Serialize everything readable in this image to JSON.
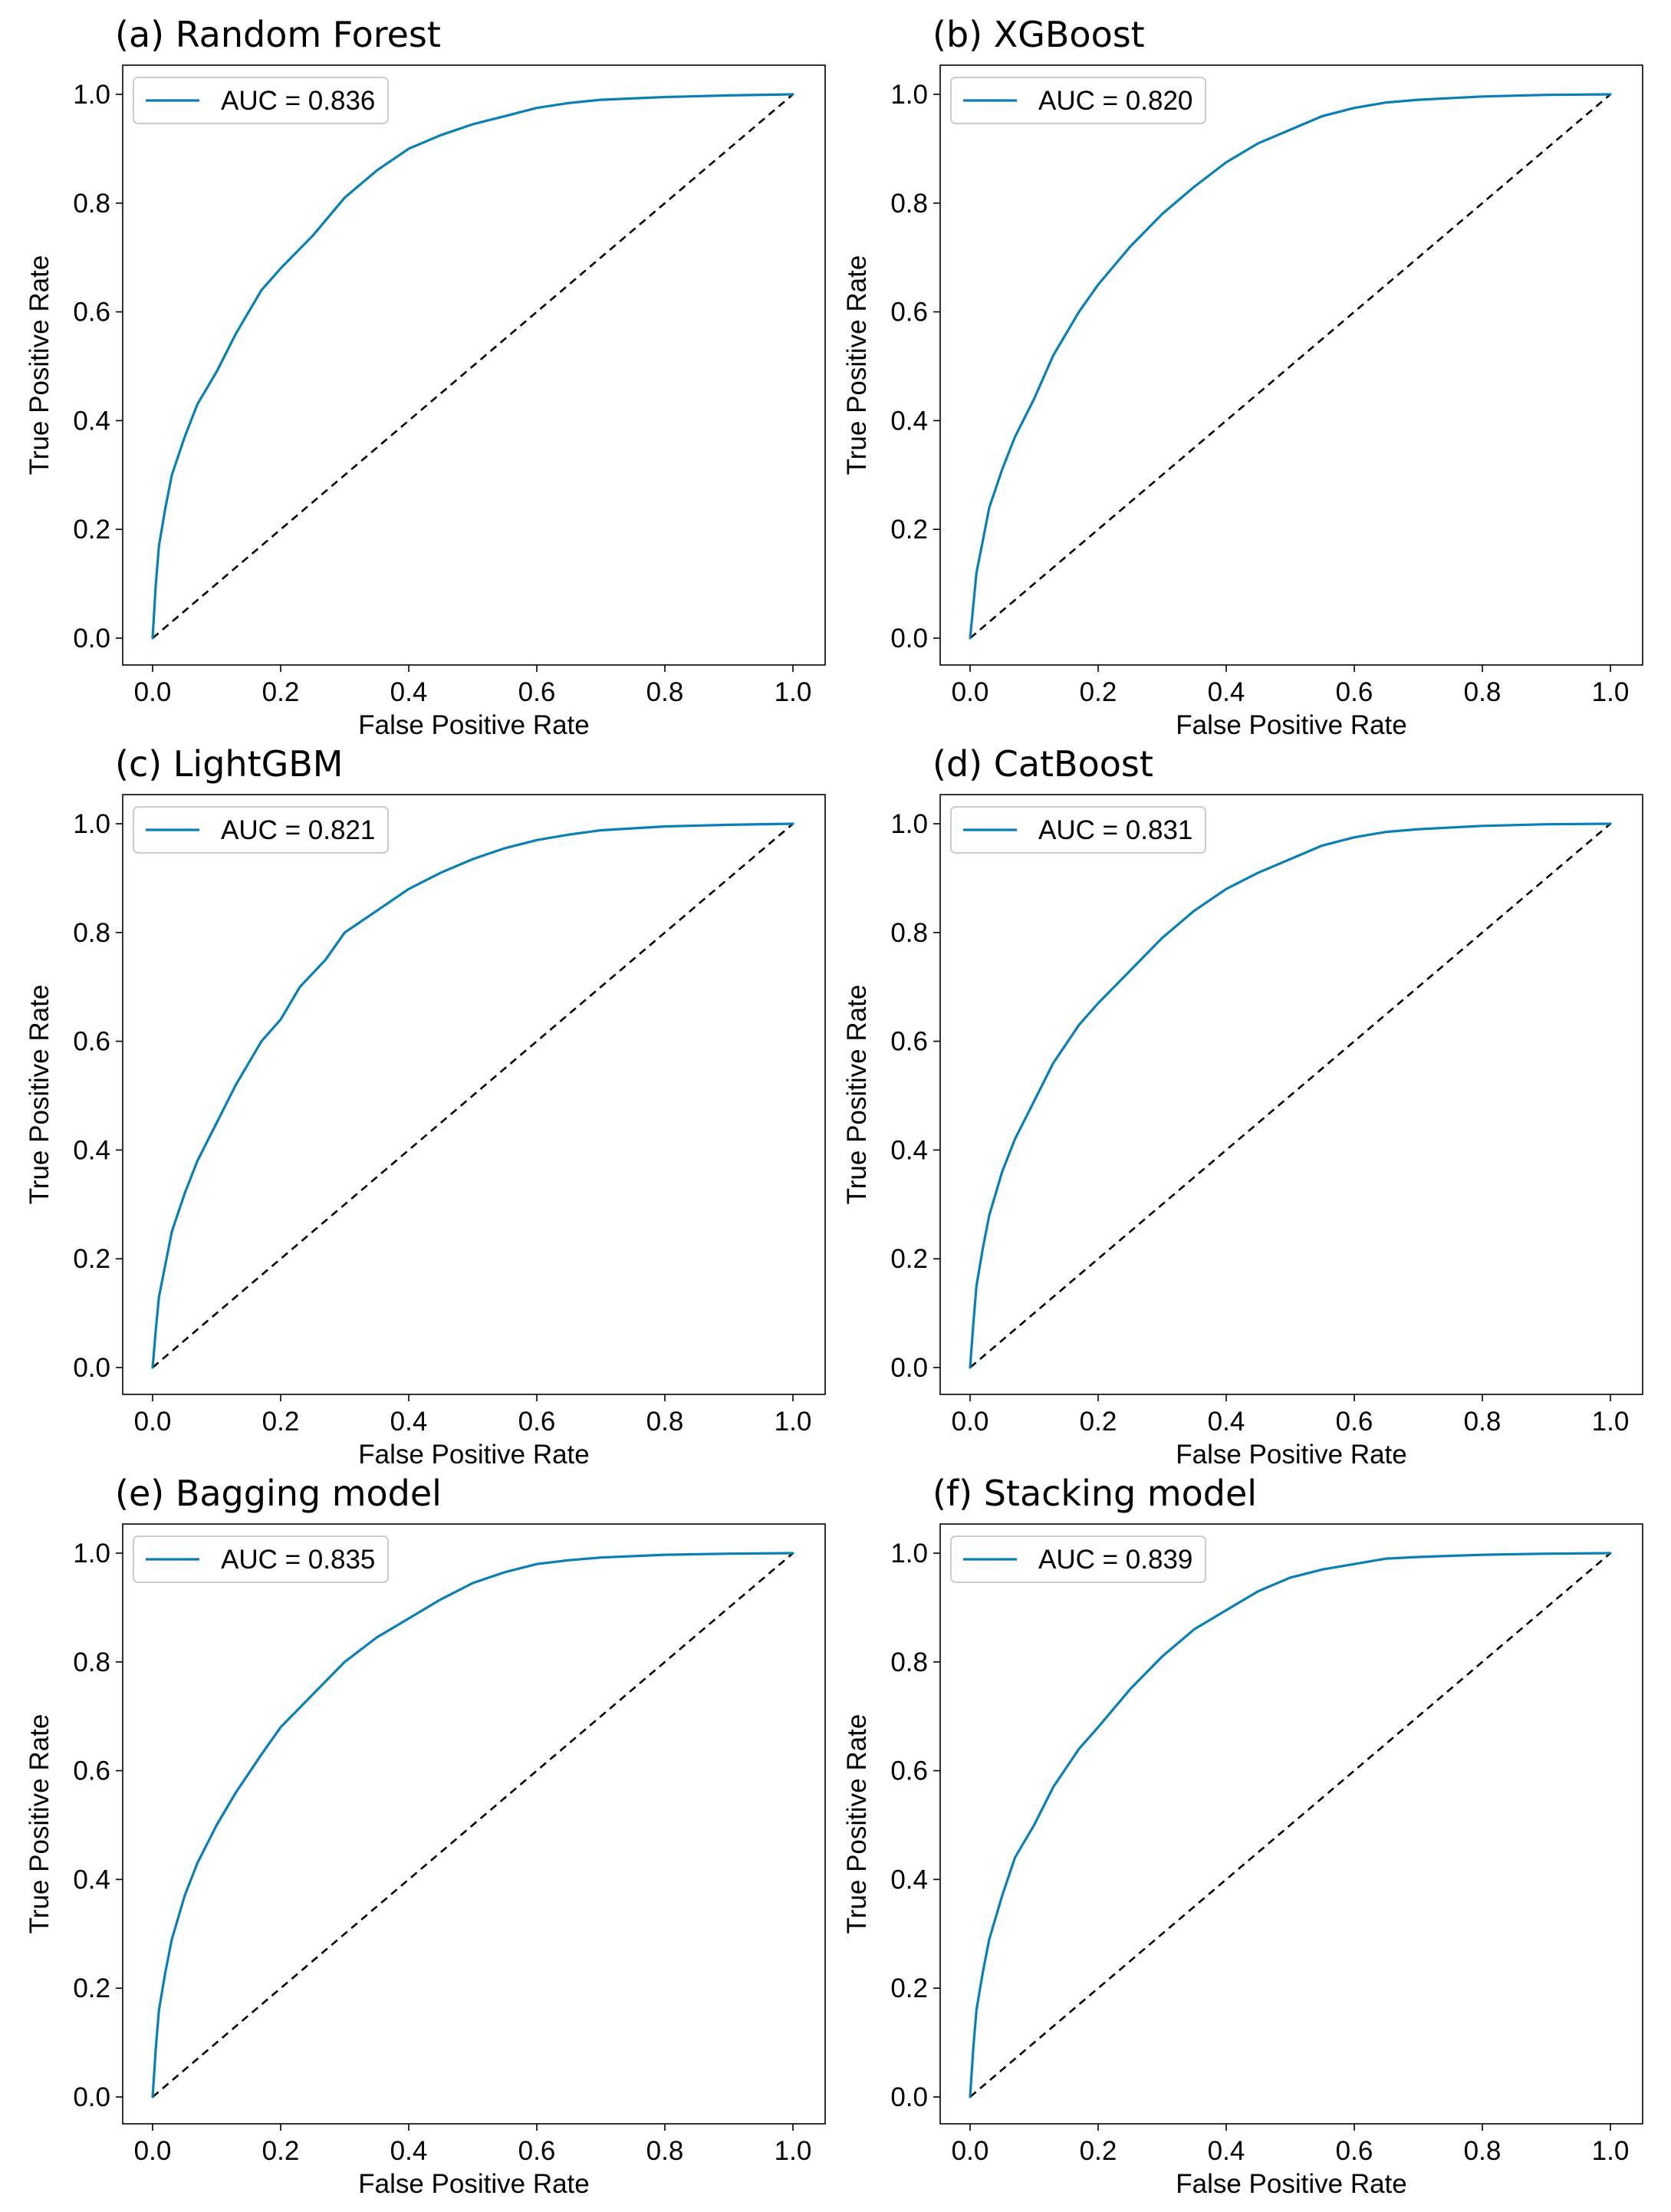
{
  "figure": {
    "background": "#ffffff",
    "curve_color": "#0a7fb3",
    "diagonal_color": "#000000"
  },
  "chart_data": [
    {
      "type": "line",
      "title": "(a) Random Forest",
      "xlabel": "False Positive Rate",
      "ylabel": "True Positive Rate",
      "xlim": [
        0,
        1
      ],
      "ylim": [
        0,
        1
      ],
      "xticks": [
        "0.0",
        "0.2",
        "0.4",
        "0.6",
        "0.8",
        "1.0"
      ],
      "yticks": [
        "0.0",
        "0.2",
        "0.4",
        "0.6",
        "0.8",
        "1.0"
      ],
      "legend": "AUC = 0.836",
      "legend_position": "top-left",
      "series": [
        {
          "name": "ROC",
          "x": [
            0,
            0.005,
            0.01,
            0.02,
            0.03,
            0.05,
            0.07,
            0.1,
            0.13,
            0.17,
            0.2,
            0.25,
            0.3,
            0.35,
            0.4,
            0.45,
            0.5,
            0.55,
            0.6,
            0.65,
            0.7,
            0.8,
            0.9,
            1.0
          ],
          "y": [
            0,
            0.1,
            0.17,
            0.24,
            0.3,
            0.37,
            0.43,
            0.49,
            0.56,
            0.64,
            0.68,
            0.74,
            0.81,
            0.86,
            0.9,
            0.925,
            0.945,
            0.96,
            0.975,
            0.984,
            0.99,
            0.995,
            0.998,
            1.0
          ]
        },
        {
          "name": "chance",
          "x": [
            0,
            1
          ],
          "y": [
            0,
            1
          ]
        }
      ]
    },
    {
      "type": "line",
      "title": "(b) XGBoost",
      "xlabel": "False Positive Rate",
      "ylabel": "True Positive Rate",
      "xlim": [
        0,
        1
      ],
      "ylim": [
        0,
        1
      ],
      "xticks": [
        "0.0",
        "0.2",
        "0.4",
        "0.6",
        "0.8",
        "1.0"
      ],
      "yticks": [
        "0.0",
        "0.2",
        "0.4",
        "0.6",
        "0.8",
        "1.0"
      ],
      "legend": "AUC = 0.820",
      "legend_position": "top-left",
      "series": [
        {
          "name": "ROC",
          "x": [
            0,
            0.005,
            0.01,
            0.02,
            0.03,
            0.05,
            0.07,
            0.1,
            0.13,
            0.17,
            0.2,
            0.25,
            0.3,
            0.35,
            0.4,
            0.45,
            0.5,
            0.55,
            0.6,
            0.65,
            0.7,
            0.8,
            0.9,
            1.0
          ],
          "y": [
            0,
            0.06,
            0.12,
            0.18,
            0.24,
            0.31,
            0.37,
            0.44,
            0.52,
            0.6,
            0.65,
            0.72,
            0.78,
            0.83,
            0.875,
            0.91,
            0.935,
            0.96,
            0.975,
            0.985,
            0.99,
            0.996,
            0.999,
            1.0
          ]
        },
        {
          "name": "chance",
          "x": [
            0,
            1
          ],
          "y": [
            0,
            1
          ]
        }
      ]
    },
    {
      "type": "line",
      "title": "(c) LightGBM",
      "xlabel": "False Positive Rate",
      "ylabel": "True Positive Rate",
      "xlim": [
        0,
        1
      ],
      "ylim": [
        0,
        1
      ],
      "xticks": [
        "0.0",
        "0.2",
        "0.4",
        "0.6",
        "0.8",
        "1.0"
      ],
      "yticks": [
        "0.0",
        "0.2",
        "0.4",
        "0.6",
        "0.8",
        "1.0"
      ],
      "legend": "AUC = 0.821",
      "legend_position": "top-left",
      "series": [
        {
          "name": "ROC",
          "x": [
            0,
            0.005,
            0.01,
            0.02,
            0.03,
            0.05,
            0.07,
            0.1,
            0.13,
            0.17,
            0.2,
            0.23,
            0.27,
            0.3,
            0.35,
            0.4,
            0.45,
            0.5,
            0.55,
            0.6,
            0.65,
            0.7,
            0.8,
            0.9,
            1.0
          ],
          "y": [
            0,
            0.07,
            0.13,
            0.19,
            0.25,
            0.32,
            0.38,
            0.45,
            0.52,
            0.6,
            0.64,
            0.7,
            0.75,
            0.8,
            0.84,
            0.88,
            0.91,
            0.935,
            0.955,
            0.97,
            0.98,
            0.988,
            0.995,
            0.998,
            1.0
          ]
        },
        {
          "name": "chance",
          "x": [
            0,
            1
          ],
          "y": [
            0,
            1
          ]
        }
      ]
    },
    {
      "type": "line",
      "title": "(d) CatBoost",
      "xlabel": "False Positive Rate",
      "ylabel": "True Positive Rate",
      "xlim": [
        0,
        1
      ],
      "ylim": [
        0,
        1
      ],
      "xticks": [
        "0.0",
        "0.2",
        "0.4",
        "0.6",
        "0.8",
        "1.0"
      ],
      "yticks": [
        "0.0",
        "0.2",
        "0.4",
        "0.6",
        "0.8",
        "1.0"
      ],
      "legend": "AUC = 0.831",
      "legend_position": "top-left",
      "series": [
        {
          "name": "ROC",
          "x": [
            0,
            0.005,
            0.01,
            0.02,
            0.03,
            0.05,
            0.07,
            0.1,
            0.13,
            0.17,
            0.2,
            0.25,
            0.3,
            0.35,
            0.4,
            0.45,
            0.5,
            0.55,
            0.6,
            0.65,
            0.7,
            0.8,
            0.9,
            1.0
          ],
          "y": [
            0,
            0.08,
            0.15,
            0.22,
            0.28,
            0.36,
            0.42,
            0.49,
            0.56,
            0.63,
            0.67,
            0.73,
            0.79,
            0.84,
            0.88,
            0.91,
            0.935,
            0.96,
            0.975,
            0.985,
            0.99,
            0.996,
            0.999,
            1.0
          ]
        },
        {
          "name": "chance",
          "x": [
            0,
            1
          ],
          "y": [
            0,
            1
          ]
        }
      ]
    },
    {
      "type": "line",
      "title": "(e) Bagging model",
      "xlabel": "False Positive Rate",
      "ylabel": "True Positive Rate",
      "xlim": [
        0,
        1
      ],
      "ylim": [
        0,
        1
      ],
      "xticks": [
        "0.0",
        "0.2",
        "0.4",
        "0.6",
        "0.8",
        "1.0"
      ],
      "yticks": [
        "0.0",
        "0.2",
        "0.4",
        "0.6",
        "0.8",
        "1.0"
      ],
      "legend": "AUC = 0.835",
      "legend_position": "top-left",
      "series": [
        {
          "name": "ROC",
          "x": [
            0,
            0.005,
            0.01,
            0.02,
            0.03,
            0.05,
            0.07,
            0.1,
            0.13,
            0.17,
            0.2,
            0.25,
            0.3,
            0.35,
            0.4,
            0.45,
            0.5,
            0.55,
            0.6,
            0.65,
            0.7,
            0.8,
            0.9,
            1.0
          ],
          "y": [
            0,
            0.09,
            0.16,
            0.23,
            0.29,
            0.37,
            0.43,
            0.5,
            0.56,
            0.63,
            0.68,
            0.74,
            0.8,
            0.845,
            0.88,
            0.915,
            0.945,
            0.965,
            0.98,
            0.987,
            0.992,
            0.997,
            0.999,
            1.0
          ]
        },
        {
          "name": "chance",
          "x": [
            0,
            1
          ],
          "y": [
            0,
            1
          ]
        }
      ]
    },
    {
      "type": "line",
      "title": "(f) Stacking model",
      "xlabel": "False Positive Rate",
      "ylabel": "True Positive Rate",
      "xlim": [
        0,
        1
      ],
      "ylim": [
        0,
        1
      ],
      "xticks": [
        "0.0",
        "0.2",
        "0.4",
        "0.6",
        "0.8",
        "1.0"
      ],
      "yticks": [
        "0.0",
        "0.2",
        "0.4",
        "0.6",
        "0.8",
        "1.0"
      ],
      "legend": "AUC = 0.839",
      "legend_position": "top-left",
      "series": [
        {
          "name": "ROC",
          "x": [
            0,
            0.005,
            0.01,
            0.02,
            0.03,
            0.05,
            0.07,
            0.1,
            0.13,
            0.17,
            0.2,
            0.25,
            0.3,
            0.35,
            0.4,
            0.45,
            0.5,
            0.55,
            0.6,
            0.65,
            0.7,
            0.8,
            0.9,
            1.0
          ],
          "y": [
            0,
            0.09,
            0.16,
            0.23,
            0.29,
            0.37,
            0.44,
            0.5,
            0.57,
            0.64,
            0.68,
            0.75,
            0.81,
            0.86,
            0.895,
            0.93,
            0.955,
            0.97,
            0.98,
            0.99,
            0.993,
            0.997,
            0.999,
            1.0
          ]
        },
        {
          "name": "chance",
          "x": [
            0,
            1
          ],
          "y": [
            0,
            1
          ]
        }
      ]
    }
  ]
}
